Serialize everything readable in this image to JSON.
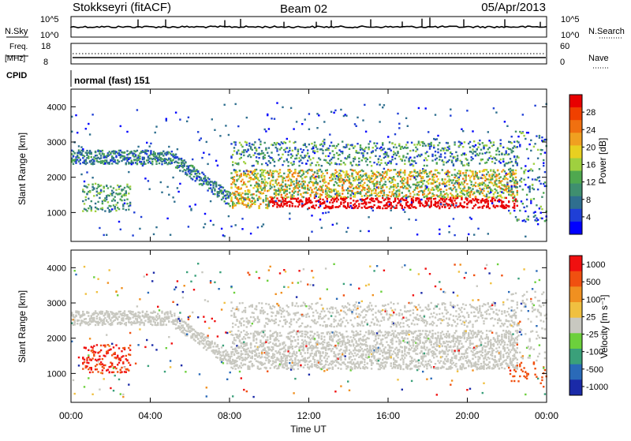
{
  "header": {
    "station": "Stokkseyri (fitACF)",
    "beam": "Beam 02",
    "date": "05/Apr/2013"
  },
  "top_panels": {
    "nsky": {
      "label": "N.Sky",
      "ticks": [
        "10^5",
        "10^0"
      ],
      "right_label": "N.Search",
      "right_ticks": [
        "10^5",
        "10^0"
      ]
    },
    "freq": {
      "label_line1": "Freq.",
      "label_line2": "[MHz]",
      "ticks": [
        "18",
        "8"
      ],
      "right_label": "Nave",
      "right_ticks": [
        "60",
        "0"
      ]
    },
    "cpid": {
      "label": "CPID",
      "value": "normal (fast) 151"
    }
  },
  "chart_data": [
    {
      "type": "heatmap",
      "name": "power",
      "ylabel": "Slant Range [km]",
      "y_ticks": [
        "1000",
        "2000",
        "3000",
        "4000"
      ],
      "ylim": [
        180,
        4500
      ],
      "xlim": [
        0,
        24
      ],
      "colorbar": {
        "label": "Power [dB]",
        "ticks": [
          "4",
          "8",
          "12",
          "16",
          "20",
          "24",
          "28"
        ],
        "colors": [
          "#0000ff",
          "#1f3fd6",
          "#2f6f8f",
          "#3f8f6f",
          "#4fa84f",
          "#9fd03f",
          "#e8d020",
          "#f0a020",
          "#f07010",
          "#f04000",
          "#e80000"
        ]
      }
    },
    {
      "type": "heatmap",
      "name": "velocity",
      "ylabel": "Slant Range [km]",
      "y_ticks": [
        "1000",
        "2000",
        "3000",
        "4000"
      ],
      "ylim": [
        180,
        4500
      ],
      "xlim": [
        0,
        24
      ],
      "ground_scatter_color": "#c8c8c0",
      "colorbar": {
        "label": "Velocity [m s⁻¹]",
        "ticks": [
          "1000",
          "500",
          "100",
          "25",
          "-25",
          "-100",
          "-500",
          "-1000"
        ],
        "colors": [
          "#1a2aa8",
          "#2a6ab8",
          "#3aa07a",
          "#6cd03c",
          "#c8c8c0",
          "#f0c040",
          "#f09020",
          "#f05010",
          "#f01010"
        ]
      }
    }
  ],
  "x_axis": {
    "ticks": [
      "00:00",
      "04:00",
      "08:00",
      "12:00",
      "16:00",
      "20:00",
      "00:00"
    ],
    "label": "Time UT"
  }
}
